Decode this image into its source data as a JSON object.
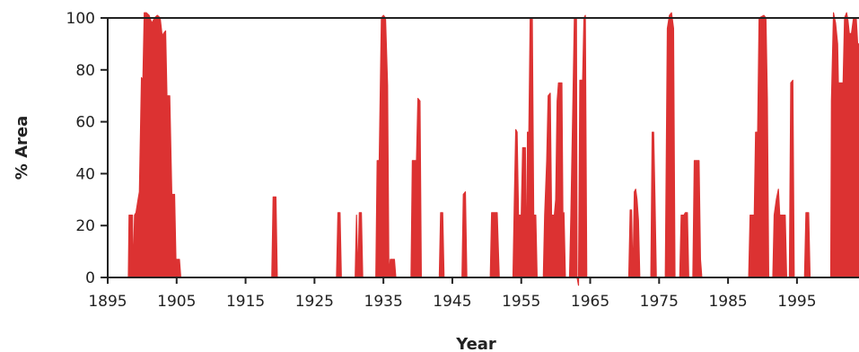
{
  "chart_data": {
    "type": "area",
    "title": "",
    "xlabel": "Year",
    "ylabel": "% Area",
    "xlim": [
      1895,
      2004
    ],
    "ylim": [
      0,
      100
    ],
    "x_ticks": [
      1895,
      1905,
      1915,
      1925,
      1935,
      1945,
      1955,
      1965,
      1975,
      1985,
      1995
    ],
    "y_ticks": [
      0,
      20,
      40,
      60,
      80,
      100
    ],
    "grid": false,
    "legend": "none",
    "series": [
      {
        "color": "#dc3232",
        "points": [
          [
            1898.0,
            0
          ],
          [
            1898.1,
            24
          ],
          [
            1898.6,
            24
          ],
          [
            1898.7,
            0
          ],
          [
            1898.9,
            24
          ],
          [
            1899.1,
            25
          ],
          [
            1899.4,
            30
          ],
          [
            1899.6,
            33
          ],
          [
            1899.9,
            77
          ],
          [
            1900.1,
            76
          ],
          [
            1900.3,
            102
          ],
          [
            1900.6,
            102
          ],
          [
            1901.0,
            101
          ],
          [
            1901.4,
            98
          ],
          [
            1901.8,
            100
          ],
          [
            1902.2,
            101
          ],
          [
            1902.6,
            100
          ],
          [
            1902.9,
            93
          ],
          [
            1903.1,
            94
          ],
          [
            1903.4,
            95
          ],
          [
            1903.6,
            70
          ],
          [
            1904.0,
            70
          ],
          [
            1904.3,
            32
          ],
          [
            1904.7,
            32
          ],
          [
            1904.9,
            7
          ],
          [
            1905.4,
            7
          ],
          [
            1905.6,
            0
          ],
          [
            1918.8,
            0
          ],
          [
            1919.0,
            31
          ],
          [
            1919.4,
            31
          ],
          [
            1919.6,
            0
          ],
          [
            1928.2,
            0
          ],
          [
            1928.4,
            25
          ],
          [
            1928.7,
            25
          ],
          [
            1928.9,
            0
          ],
          [
            1930.9,
            0
          ],
          [
            1931.1,
            24
          ],
          [
            1931.3,
            0
          ],
          [
            1931.5,
            25
          ],
          [
            1931.8,
            25
          ],
          [
            1932.0,
            0
          ],
          [
            1933.9,
            0
          ],
          [
            1934.1,
            45
          ],
          [
            1934.4,
            45
          ],
          [
            1934.7,
            100
          ],
          [
            1935.0,
            101
          ],
          [
            1935.3,
            100
          ],
          [
            1935.6,
            74
          ],
          [
            1935.8,
            0
          ],
          [
            1936.0,
            7
          ],
          [
            1936.6,
            7
          ],
          [
            1936.8,
            0
          ],
          [
            1939.0,
            0
          ],
          [
            1939.2,
            45
          ],
          [
            1939.8,
            45
          ],
          [
            1940.0,
            69
          ],
          [
            1940.3,
            68
          ],
          [
            1940.5,
            0
          ],
          [
            1943.1,
            0
          ],
          [
            1943.3,
            25
          ],
          [
            1943.6,
            25
          ],
          [
            1943.8,
            0
          ],
          [
            1946.4,
            0
          ],
          [
            1946.6,
            32
          ],
          [
            1946.9,
            33
          ],
          [
            1947.1,
            0
          ],
          [
            1950.5,
            0
          ],
          [
            1950.7,
            25
          ],
          [
            1951.5,
            25
          ],
          [
            1951.8,
            0
          ],
          [
            1953.8,
            0
          ],
          [
            1954.0,
            31
          ],
          [
            1954.2,
            57
          ],
          [
            1954.4,
            56
          ],
          [
            1954.6,
            24
          ],
          [
            1955.0,
            24
          ],
          [
            1955.2,
            50
          ],
          [
            1955.6,
            50
          ],
          [
            1955.8,
            0
          ],
          [
            1955.9,
            56
          ],
          [
            1956.1,
            56
          ],
          [
            1956.3,
            100
          ],
          [
            1956.6,
            100
          ],
          [
            1956.8,
            24
          ],
          [
            1957.1,
            24
          ],
          [
            1957.3,
            0
          ],
          [
            1958.2,
            0
          ],
          [
            1958.4,
            24
          ],
          [
            1958.7,
            45
          ],
          [
            1958.9,
            70
          ],
          [
            1959.2,
            71
          ],
          [
            1959.4,
            24
          ],
          [
            1959.8,
            24
          ],
          [
            1960.0,
            30
          ],
          [
            1960.2,
            68
          ],
          [
            1960.4,
            75
          ],
          [
            1960.9,
            75
          ],
          [
            1961.1,
            0
          ],
          [
            1961.2,
            25
          ],
          [
            1961.4,
            0
          ],
          [
            1962.0,
            0
          ],
          [
            1962.2,
            24
          ],
          [
            1962.5,
            68
          ],
          [
            1962.7,
            100
          ],
          [
            1963.0,
            100
          ],
          [
            1963.1,
            0
          ],
          [
            1963.3,
            -3
          ],
          [
            1963.5,
            76
          ],
          [
            1963.9,
            76
          ],
          [
            1964.1,
            100
          ],
          [
            1964.3,
            101
          ],
          [
            1964.5,
            0
          ],
          [
            1970.6,
            0
          ],
          [
            1970.8,
            26
          ],
          [
            1971.0,
            26
          ],
          [
            1971.2,
            0
          ],
          [
            1971.4,
            33
          ],
          [
            1971.6,
            34
          ],
          [
            1971.8,
            30
          ],
          [
            1972.0,
            22
          ],
          [
            1972.2,
            0
          ],
          [
            1973.8,
            0
          ],
          [
            1974.0,
            56
          ],
          [
            1974.2,
            56
          ],
          [
            1974.4,
            30
          ],
          [
            1974.6,
            0
          ],
          [
            1975.9,
            0
          ],
          [
            1976.2,
            96
          ],
          [
            1976.5,
            101
          ],
          [
            1976.8,
            102
          ],
          [
            1977.1,
            96
          ],
          [
            1977.3,
            0
          ],
          [
            1978.0,
            0
          ],
          [
            1978.2,
            24
          ],
          [
            1978.6,
            24
          ],
          [
            1978.8,
            25
          ],
          [
            1979.1,
            25
          ],
          [
            1979.3,
            0
          ],
          [
            1979.9,
            0
          ],
          [
            1980.1,
            45
          ],
          [
            1980.8,
            45
          ],
          [
            1981.0,
            7
          ],
          [
            1981.2,
            0
          ],
          [
            1988.0,
            0
          ],
          [
            1988.2,
            24
          ],
          [
            1988.8,
            24
          ],
          [
            1989.0,
            56
          ],
          [
            1989.3,
            56
          ],
          [
            1989.5,
            100
          ],
          [
            1990.2,
            101
          ],
          [
            1990.5,
            100
          ],
          [
            1990.7,
            69
          ],
          [
            1990.9,
            0
          ],
          [
            1991.5,
            0
          ],
          [
            1991.7,
            24
          ],
          [
            1992.0,
            30
          ],
          [
            1992.3,
            34
          ],
          [
            1992.5,
            24
          ],
          [
            1993.3,
            24
          ],
          [
            1993.5,
            0
          ],
          [
            1993.9,
            0
          ],
          [
            1994.1,
            75
          ],
          [
            1994.4,
            76
          ],
          [
            1994.6,
            0
          ],
          [
            1996.1,
            0
          ],
          [
            1996.3,
            25
          ],
          [
            1996.7,
            25
          ],
          [
            1996.9,
            0
          ],
          [
            1999.9,
            0
          ],
          [
            2000.0,
            68
          ],
          [
            2000.3,
            102
          ],
          [
            2000.6,
            98
          ],
          [
            2000.9,
            90
          ],
          [
            2001.0,
            75
          ],
          [
            2001.7,
            75
          ],
          [
            2001.9,
            100
          ],
          [
            2002.2,
            102
          ],
          [
            2002.4,
            99
          ],
          [
            2002.6,
            94
          ],
          [
            2002.9,
            94
          ],
          [
            2003.2,
            100
          ],
          [
            2003.6,
            100
          ],
          [
            2003.8,
            90
          ],
          [
            2004.0,
            90
          ],
          [
            2004.0,
            0
          ]
        ]
      }
    ]
  }
}
